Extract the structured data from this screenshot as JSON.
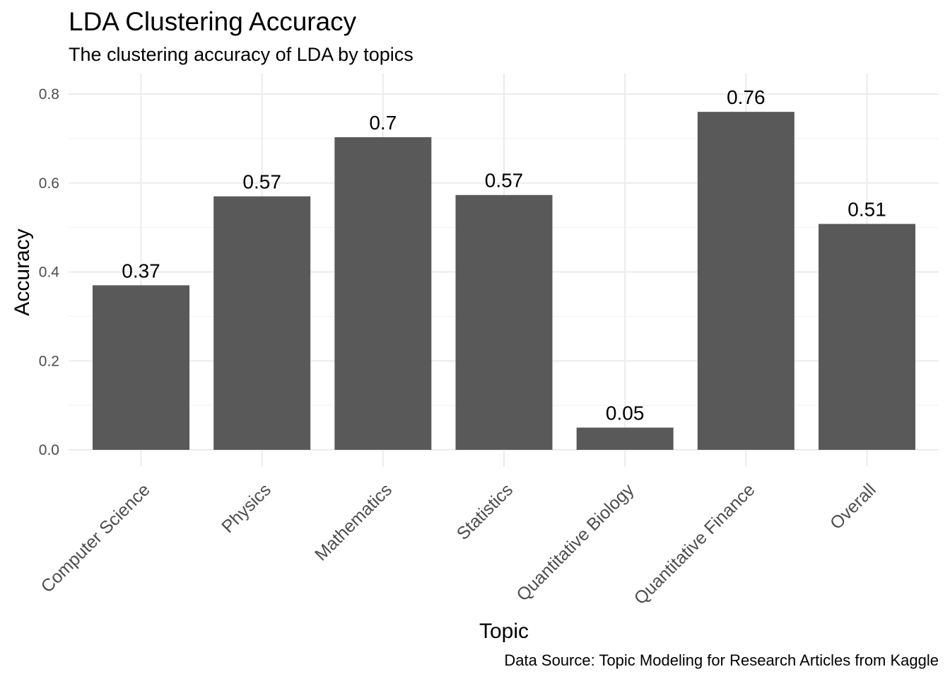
{
  "chart_data": {
    "type": "bar",
    "title": "LDA Clustering Accuracy",
    "subtitle": "The clustering accuracy of LDA by topics",
    "xlabel": "Topic",
    "ylabel": "Accuracy",
    "caption": "Data Source: Topic Modeling for Research Articles from Kaggle",
    "categories": [
      "Computer Science",
      "Physics",
      "Mathematics",
      "Statistics",
      "Quantitative Biology",
      "Quantitative Finance",
      "Overall"
    ],
    "values": [
      0.37,
      0.57,
      0.703,
      0.573,
      0.05,
      0.76,
      0.508
    ],
    "value_labels": [
      "0.37",
      "0.57",
      "0.7",
      "0.57",
      "0.05",
      "0.76",
      "0.51"
    ],
    "ylim": [
      0,
      0.8
    ],
    "yticks": [
      0,
      0.2,
      0.4,
      0.6,
      0.8
    ],
    "ytick_labels": [
      "0.0",
      "0.2",
      "0.4",
      "0.6",
      "0.8"
    ],
    "grid": true,
    "bar_color": "#595959"
  }
}
